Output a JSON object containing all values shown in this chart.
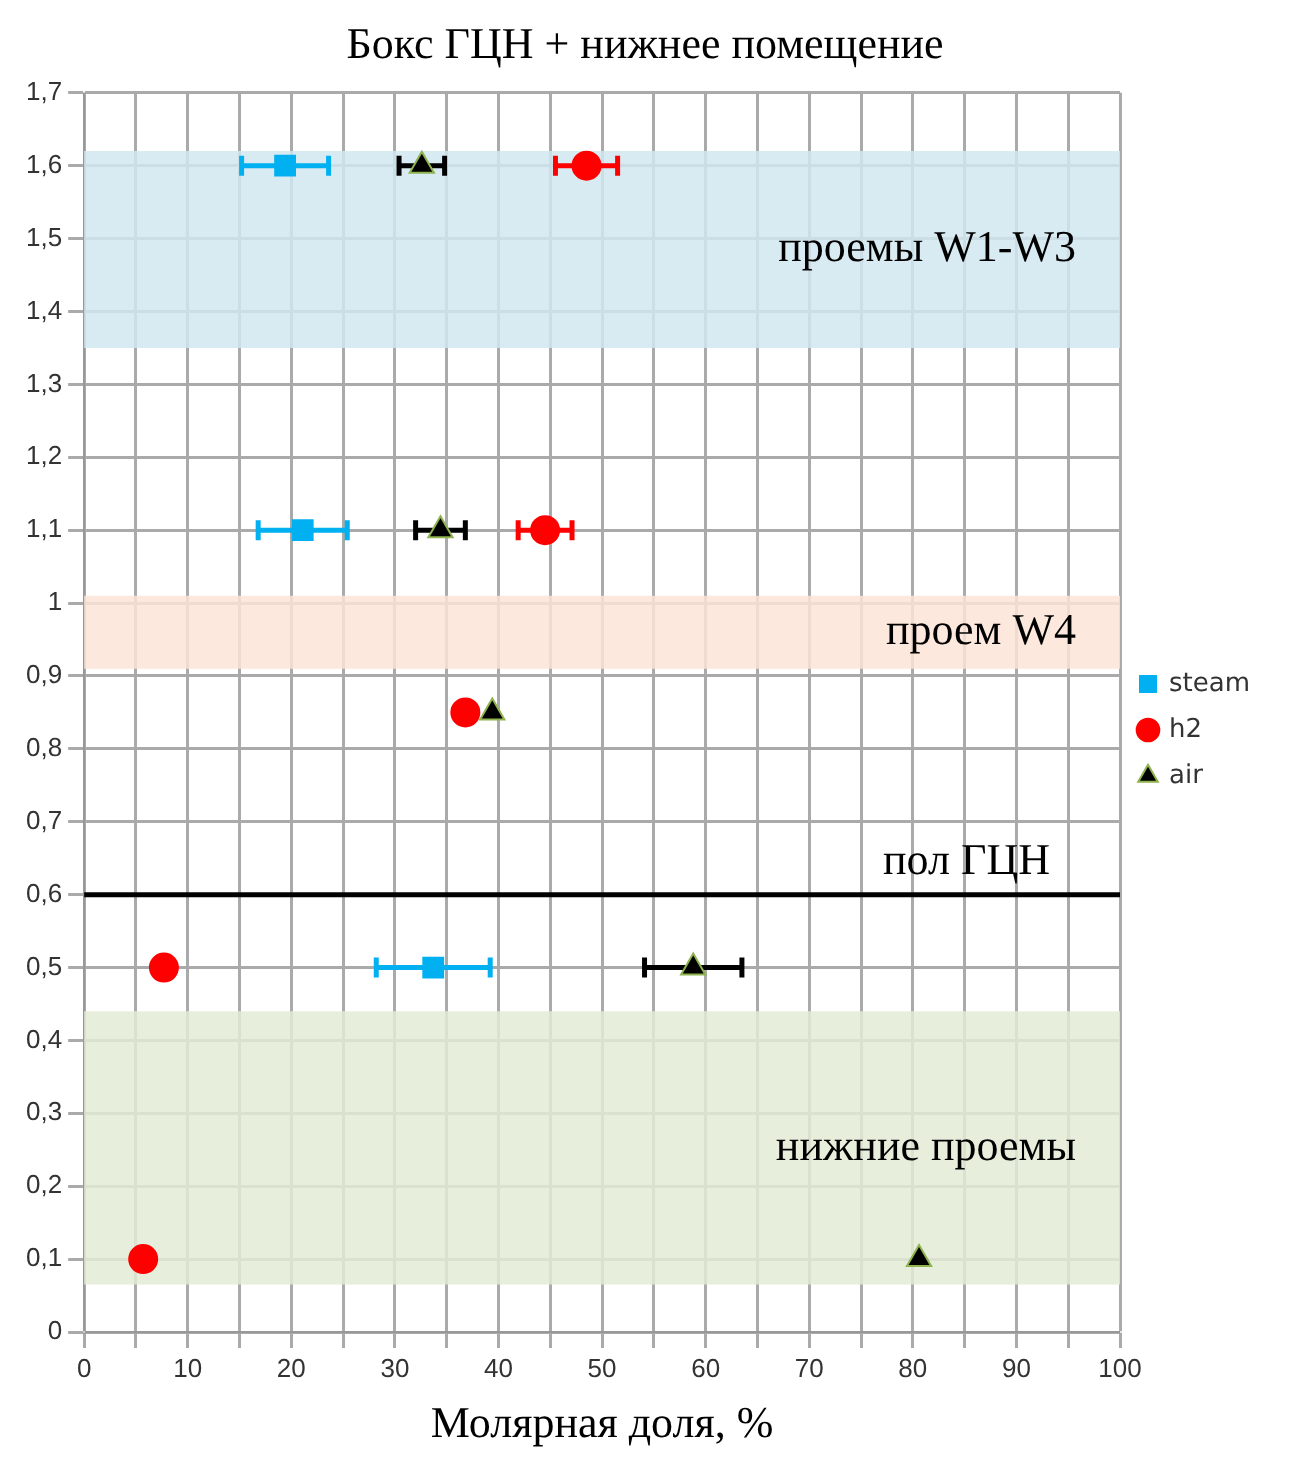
{
  "chart_data": {
    "type": "scatter",
    "title": "Бокс ГЦН + нижнее помещение",
    "xlabel": "Молярная доля, %",
    "xlim": [
      0,
      100
    ],
    "xticks": [
      0,
      {
        "value": 5,
        "label": null
      },
      10,
      {
        "value": 15,
        "label": null
      },
      20,
      {
        "value": 25,
        "label": null
      },
      30,
      {
        "value": 35,
        "label": null
      },
      40,
      {
        "value": 45,
        "label": null
      },
      50,
      {
        "value": 55,
        "label": null
      },
      60,
      {
        "value": 65,
        "label": null
      },
      70,
      {
        "value": 75,
        "label": null
      },
      80,
      {
        "value": 85,
        "label": null
      },
      90,
      {
        "value": 95,
        "label": null
      },
      100
    ],
    "ylim": [
      0,
      1.7
    ],
    "yticks": [
      0,
      {
        "value": 0.1,
        "label": "0,1"
      },
      {
        "value": 0.2,
        "label": "0,2"
      },
      {
        "value": 0.3,
        "label": "0,3"
      },
      {
        "value": 0.4,
        "label": "0,4"
      },
      {
        "value": 0.5,
        "label": "0,5"
      },
      {
        "value": 0.6,
        "label": "0,6"
      },
      {
        "value": 0.7,
        "label": "0,7"
      },
      {
        "value": 0.8,
        "label": "0,8"
      },
      {
        "value": 0.9,
        "label": "0,9"
      },
      1,
      {
        "value": 1.1,
        "label": "1,1"
      },
      {
        "value": 1.2,
        "label": "1,2"
      },
      {
        "value": 1.3,
        "label": "1,3"
      },
      {
        "value": 1.4,
        "label": "1,4"
      },
      {
        "value": 1.5,
        "label": "1,5"
      },
      {
        "value": 1.6,
        "label": "1,6"
      },
      {
        "value": 1.7,
        "label": "1,7"
      }
    ],
    "grid": true,
    "legend": "right",
    "series": [
      {
        "name": "steam",
        "color": "#00b0f0",
        "marker": "square",
        "x": [
          19.4,
          21.1,
          33.7
        ],
        "values": [
          1.6,
          1.1,
          0.5
        ],
        "xerrors": [
          4.2,
          4.3,
          5.5
        ]
      },
      {
        "name": "h2",
        "color": "#ff0000",
        "marker": "circle",
        "x": [
          48.5,
          44.5,
          36.8,
          7.7,
          5.7
        ],
        "values": [
          1.6,
          1.1,
          0.85,
          0.5,
          0.1
        ],
        "xerrors": [
          3,
          2.6,
          null,
          null,
          null
        ]
      },
      {
        "name": "air",
        "color": "#000000",
        "marker": "triangle",
        "x": [
          32.6,
          34.4,
          39.4,
          58.8,
          80.6
        ],
        "values": [
          1.6,
          1.1,
          0.85,
          0.5,
          0.1
        ],
        "xerrors": [
          2.2,
          2.4,
          null,
          4.7,
          null
        ]
      }
    ],
    "bands": [
      {
        "axis": "y",
        "from": 1.35,
        "to": 1.62,
        "label": "проемы W1-W3",
        "color": "#d2e8f0"
      },
      {
        "axis": "y",
        "from": 0.91,
        "to": 1.01,
        "label": "проем W4",
        "color": "#fce4d6"
      },
      {
        "axis": "y",
        "from": 0.065,
        "to": 0.44,
        "label": "нижние проемы",
        "color": "#e4ebd6"
      }
    ],
    "ref_lines": [
      {
        "axis": "y",
        "value": 0.6,
        "label": "пол ГЦН",
        "color": "#000000"
      }
    ]
  }
}
